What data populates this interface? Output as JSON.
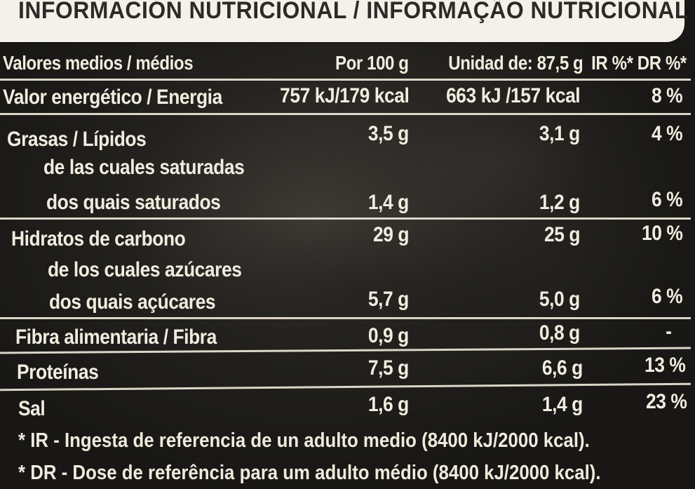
{
  "header": {
    "title": "INFORMACIÓN NUTRICIONAL / INFORMAÇÃO NUTRICIONAL"
  },
  "table": {
    "columns": {
      "name": "Valores medios / médios",
      "per100": "Por 100 g",
      "unit": "Unidad de: 87,5 g",
      "pct": "IR %* DR %*"
    },
    "rows": [
      {
        "label": "Valor energético / Energia",
        "per100": "757 kJ/179 kcal",
        "unit": "663 kJ /157 kcal",
        "pct": "8 %"
      },
      {
        "label": "Grasas / Lípidos",
        "per100": "3,5 g",
        "unit": "3,1 g",
        "pct": "4 %"
      },
      {
        "label": "de las cuales saturadas",
        "label2": "dos quais saturados",
        "per100": "1,4 g",
        "unit": "1,2 g",
        "pct": "6 %"
      },
      {
        "label": "Hidratos de carbono",
        "per100": "29 g",
        "unit": "25 g",
        "pct": "10 %"
      },
      {
        "label": "de los cuales azúcares",
        "label2": "dos quais açúcares",
        "per100": "5,7 g",
        "unit": "5,0 g",
        "pct": "6 %"
      },
      {
        "label": "Fibra alimentaria / Fibra",
        "per100": "0,9 g",
        "unit": "0,8 g",
        "pct": "-"
      },
      {
        "label": "Proteínas",
        "per100": "7,5 g",
        "unit": "6,6 g",
        "pct": "13 %"
      },
      {
        "label": "Sal",
        "per100": "1,6 g",
        "unit": "1,4 g",
        "pct": "23 %"
      }
    ]
  },
  "footnotes": {
    "ir": "* IR - Ingesta de referencia de un adulto medio (8400 kJ/2000 kcal).",
    "dr": "* DR - Dose de referência para um adulto médio (8400 kJ/2000 kcal)."
  }
}
